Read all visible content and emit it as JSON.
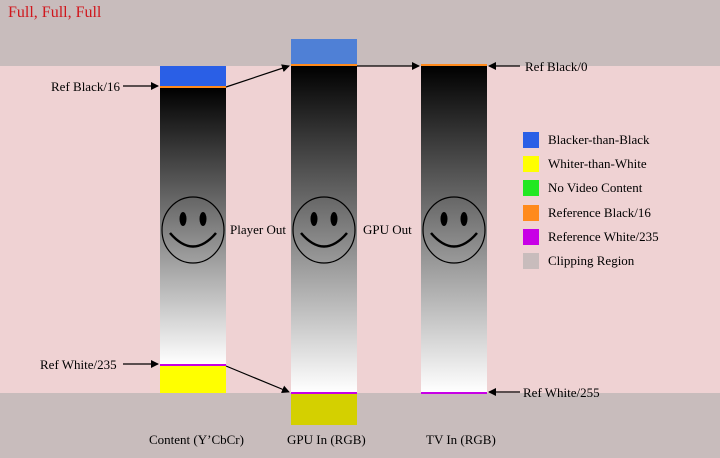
{
  "title": "Full, Full, Full",
  "colors": {
    "clipping_region": "#c8bcbc",
    "valid_region": "#efd2d3",
    "blacker_than_black": "#2a5fe6",
    "blacker_than_black_gpu": "#4f80d6",
    "whiter_than_white": "#ffff00",
    "whiter_than_white_gpu": "#d4d000",
    "no_video_content": "#22e822",
    "reference_black": "#ff8a1c",
    "reference_white": "#c800e6",
    "title": "#d0161c"
  },
  "annotations": {
    "ref_black_16": "Ref Black/16",
    "ref_white_235": "Ref White/235",
    "ref_black_0": "Ref Black/0",
    "ref_white_255": "Ref White/255",
    "player_out": "Player Out",
    "gpu_out": "GPU Out"
  },
  "columns": [
    {
      "label": "Content (Y’CbCr)"
    },
    {
      "label": "GPU In (RGB)"
    },
    {
      "label": "TV In (RGB)"
    }
  ],
  "legend": [
    {
      "label": "Blacker-than-Black",
      "color": "#2a5fe6"
    },
    {
      "label": "Whiter-than-White",
      "color": "#ffff00"
    },
    {
      "label": "No Video Content",
      "color": "#22e822"
    },
    {
      "label": "Reference Black/16",
      "color": "#ff8a1c"
    },
    {
      "label": "Reference White/235",
      "color": "#c800e6"
    },
    {
      "label": "Clipping Region",
      "color": "#c8bcbc"
    }
  ]
}
